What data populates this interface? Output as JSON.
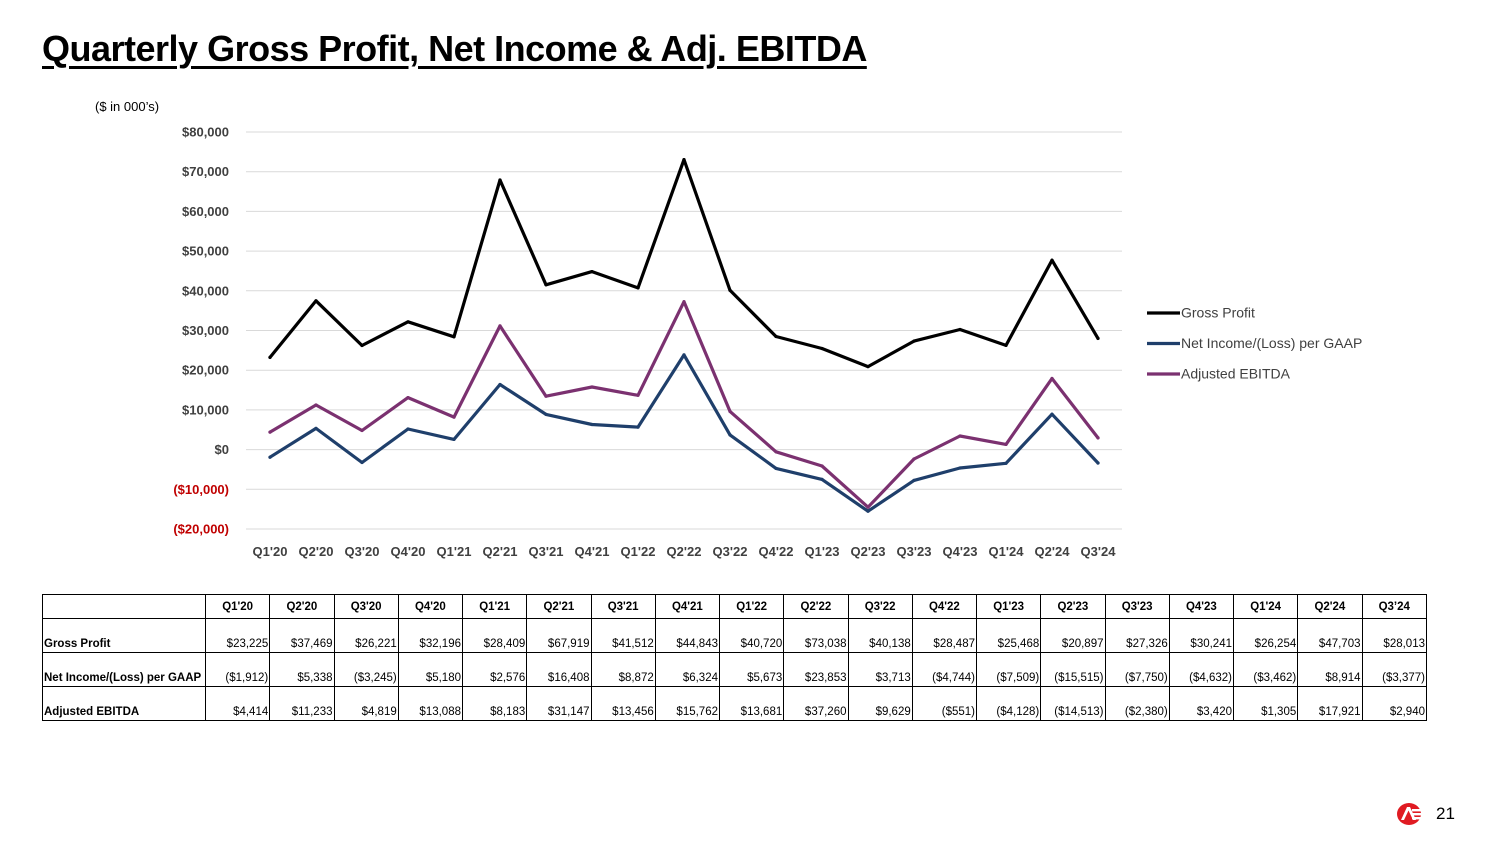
{
  "title": "Quarterly Gross Profit, Net Income & Adj. EBITDA",
  "units": "($ in 000’s)",
  "page_number": "21",
  "logo_icon": "ae-logo-icon",
  "colors": {
    "gross_profit": "#000000",
    "net_income": "#1f3f6b",
    "adjusted_ebitda": "#7b3170",
    "negative_tick": "#c00000",
    "grid": "#d9d9d9"
  },
  "chart_data": {
    "type": "line",
    "categories": [
      "Q1'20",
      "Q2'20",
      "Q3'20",
      "Q4'20",
      "Q1'21",
      "Q2'21",
      "Q3'21",
      "Q4'21",
      "Q1'22",
      "Q2'22",
      "Q3'22",
      "Q4'22",
      "Q1'23",
      "Q2'23",
      "Q3'23",
      "Q4'23",
      "Q1'24",
      "Q2'24",
      "Q3'24"
    ],
    "ylim": [
      -20000,
      80000
    ],
    "yticks": [
      80000,
      70000,
      60000,
      50000,
      40000,
      30000,
      20000,
      10000,
      0,
      -10000,
      -20000
    ],
    "ytick_labels": [
      "$80,000",
      "$70,000",
      "$60,000",
      "$50,000",
      "$40,000",
      "$30,000",
      "$20,000",
      "$10,000",
      "$0",
      "($10,000)",
      "($20,000)"
    ],
    "grid": true,
    "legend_position": "right",
    "series": [
      {
        "name": "Gross Profit",
        "values": [
          23225,
          37469,
          26221,
          32196,
          28409,
          67919,
          41512,
          44843,
          40720,
          73038,
          40138,
          28487,
          25468,
          20897,
          27326,
          30241,
          26254,
          47703,
          28013
        ]
      },
      {
        "name": "Net Income/(Loss) per GAAP",
        "values": [
          -1912,
          5338,
          -3245,
          5180,
          2576,
          16408,
          8872,
          6324,
          5673,
          23853,
          3713,
          -4744,
          -7509,
          -15515,
          -7750,
          -4632,
          -3462,
          8914,
          -3377
        ]
      },
      {
        "name": "Adjusted EBITDA",
        "values": [
          4414,
          11233,
          4819,
          13088,
          8183,
          31147,
          13456,
          15762,
          13681,
          37260,
          9629,
          -551,
          -4128,
          -14513,
          -2380,
          3420,
          1305,
          17921,
          2940
        ]
      }
    ]
  },
  "table": {
    "headers": [
      "Q1'20",
      "Q2'20",
      "Q3'20",
      "Q4'20",
      "Q1'21",
      "Q2'21",
      "Q3'21",
      "Q4'21",
      "Q1'22",
      "Q2'22",
      "Q3'22",
      "Q4'22",
      "Q1'23",
      "Q2'23",
      "Q3'23",
      "Q4'23",
      "Q1'24",
      "Q2'24",
      "Q3’24"
    ],
    "rows": [
      {
        "label": "Gross Profit",
        "cells": [
          "$23,225",
          "$37,469",
          "$26,221",
          "$32,196",
          "$28,409",
          "$67,919",
          "$41,512",
          "$44,843",
          "$40,720",
          "$73,038",
          "$40,138",
          "$28,487",
          "$25,468",
          "$20,897",
          "$27,326",
          "$30,241",
          "$26,254",
          "$47,703",
          "$28,013"
        ]
      },
      {
        "label": "Net Income/(Loss) per GAAP",
        "cells": [
          "($1,912)",
          "$5,338",
          "($3,245)",
          "$5,180",
          "$2,576",
          "$16,408",
          "$8,872",
          "$6,324",
          "$5,673",
          "$23,853",
          "$3,713",
          "($4,744)",
          "($7,509)",
          "($15,515)",
          "($7,750)",
          "($4,632)",
          "($3,462)",
          "$8,914",
          "($3,377)"
        ]
      },
      {
        "label": "Adjusted EBITDA",
        "cells": [
          "$4,414",
          "$11,233",
          "$4,819",
          "$13,088",
          "$8,183",
          "$31,147",
          "$13,456",
          "$15,762",
          "$13,681",
          "$37,260",
          "$9,629",
          "($551)",
          "($4,128)",
          "($14,513)",
          "($2,380)",
          "$3,420",
          "$1,305",
          "$17,921",
          "$2,940"
        ]
      }
    ]
  }
}
